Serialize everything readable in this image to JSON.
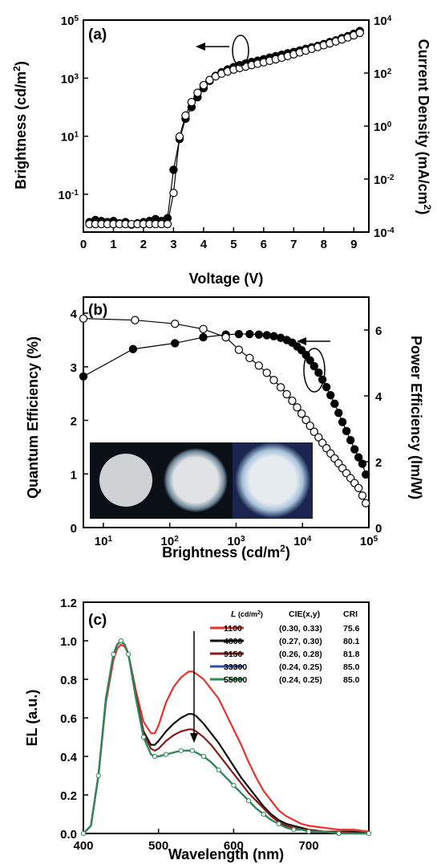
{
  "chart_data": [
    {
      "type": "line",
      "panel_label": "(a)",
      "xlabel": "Voltage (V)",
      "ylabel_left": "Brightness (cd/m2)",
      "ylabel_right": "Current Density (mA/cm2)",
      "xlim": [
        0,
        9.5
      ],
      "ylim_left": [
        0.005,
        100000
      ],
      "ylim_right": [
        0.0001,
        10000
      ],
      "yscale": "log",
      "x_ticks": [
        "0",
        "1",
        "2",
        "3",
        "4",
        "5",
        "6",
        "7",
        "8",
        "9"
      ],
      "y_ticks_left": [
        {
          "base": "10",
          "exp": "5"
        },
        {
          "base": "10",
          "exp": "3"
        },
        {
          "base": "10",
          "exp": "1"
        },
        {
          "base": "10",
          "exp": "-1"
        }
      ],
      "y_ticks_right": [
        {
          "base": "10",
          "exp": "4"
        },
        {
          "base": "10",
          "exp": "2"
        },
        {
          "base": "10",
          "exp": "0"
        },
        {
          "base": "10",
          "exp": "-2"
        },
        {
          "base": "10",
          "exp": "-4"
        }
      ],
      "arrow_direction": "left",
      "series": [
        {
          "marker": "filled-circle",
          "axis": "left",
          "color": "#000000",
          "x": [
            0.2,
            0.4,
            0.6,
            0.8,
            1.0,
            1.2,
            1.4,
            1.6,
            1.8,
            2.0,
            2.2,
            2.4,
            2.6,
            2.8,
            3.0,
            3.2,
            3.4,
            3.6,
            3.8,
            4.0,
            4.2,
            4.4,
            4.6,
            4.8,
            5.0,
            5.2,
            5.4,
            5.6,
            5.8,
            6.0,
            6.2,
            6.4,
            6.6,
            6.8,
            7.0,
            7.2,
            7.4,
            7.6,
            7.8,
            8.0,
            8.2,
            8.4,
            8.6,
            8.8,
            9.0,
            9.2
          ],
          "y": [
            0.011,
            0.013,
            0.012,
            0.011,
            0.012,
            0.01,
            0.011,
            0.009,
            0.01,
            0.011,
            0.012,
            0.014,
            0.012,
            0.015,
            0.7,
            8,
            40,
            100,
            220,
            450,
            800,
            1200,
            1600,
            2000,
            2400,
            2800,
            3200,
            3600,
            4000,
            4500,
            5100,
            5700,
            6400,
            7200,
            8000,
            9000,
            10200,
            11500,
            13000,
            15000,
            17500,
            20000,
            24000,
            28000,
            34000,
            42000
          ]
        },
        {
          "marker": "open-circle",
          "axis": "right",
          "color": "#000000",
          "x": [
            0.2,
            0.4,
            0.6,
            0.8,
            1.0,
            1.2,
            1.4,
            1.6,
            1.8,
            2.0,
            2.2,
            2.4,
            2.6,
            2.8,
            3.0,
            3.2,
            3.4,
            3.6,
            3.8,
            4.0,
            4.2,
            4.4,
            4.6,
            4.8,
            5.0,
            5.2,
            5.4,
            5.6,
            5.8,
            6.0,
            6.2,
            6.4,
            6.6,
            6.8,
            7.0,
            7.2,
            7.4,
            7.6,
            7.8,
            8.0,
            8.2,
            8.4,
            8.6,
            8.8,
            9.0,
            9.2
          ],
          "y": [
            0.0002,
            0.0002,
            0.0002,
            0.0002,
            0.0002,
            0.0002,
            0.0002,
            0.0002,
            0.0002,
            0.0002,
            0.0002,
            0.0002,
            0.0002,
            0.0002,
            0.003,
            0.4,
            2.5,
            8,
            18,
            35,
            55,
            75,
            95,
            115,
            135,
            155,
            175,
            200,
            225,
            255,
            290,
            330,
            380,
            440,
            510,
            600,
            700,
            820,
            960,
            1120,
            1320,
            1560,
            1850,
            2200,
            2650,
            3300
          ]
        }
      ]
    },
    {
      "type": "line",
      "panel_label": "(b)",
      "xlabel": "Brightness (cd/m2)",
      "ylabel_left": "Quantum Efficiency (%)",
      "ylabel_right": "Power Efficiency (lm/W)",
      "xscale": "log",
      "xlim": [
        5,
        100000
      ],
      "ylim_left": [
        0,
        4.3
      ],
      "ylim_right": [
        0,
        7.0
      ],
      "x_ticks": [
        {
          "base": "10",
          "exp": "1"
        },
        {
          "base": "10",
          "exp": "2"
        },
        {
          "base": "10",
          "exp": "3"
        },
        {
          "base": "10",
          "exp": "4"
        },
        {
          "base": "10",
          "exp": "5"
        }
      ],
      "y_ticks_left": [
        "0",
        "1",
        "2",
        "3",
        "4"
      ],
      "y_ticks_right": [
        "0",
        "2",
        "4",
        "6"
      ],
      "arrow_direction": "left",
      "inset": "three photographs of emitting circular device pixels",
      "series": [
        {
          "marker": "filled-circle",
          "axis": "left",
          "color": "#000000",
          "x": [
            5,
            28,
            120,
            320,
            700,
            1100,
            1600,
            2200,
            2900,
            3700,
            4700,
            5800,
            7000,
            8300,
            9700,
            11300,
            13000,
            15000,
            17500,
            20000,
            23000,
            26500,
            30500,
            35000,
            40000,
            46000,
            53000,
            61000,
            70000,
            80000,
            90000
          ],
          "y": [
            2.82,
            3.33,
            3.44,
            3.55,
            3.6,
            3.61,
            3.61,
            3.6,
            3.59,
            3.57,
            3.54,
            3.5,
            3.45,
            3.38,
            3.31,
            3.22,
            3.12,
            3.01,
            2.89,
            2.76,
            2.62,
            2.47,
            2.31,
            2.14,
            1.97,
            1.8,
            1.63,
            1.46,
            1.31,
            1.19,
            0.99
          ]
        },
        {
          "marker": "open-circle",
          "axis": "right",
          "color": "#000000",
          "x": [
            5,
            30,
            120,
            320,
            700,
            1100,
            1600,
            2200,
            2900,
            3700,
            4700,
            5800,
            7000,
            8300,
            9700,
            11300,
            13000,
            15000,
            17500,
            20000,
            23000,
            26500,
            30500,
            35000,
            40000,
            46000,
            53000,
            61000,
            70000,
            80000,
            90000
          ],
          "y": [
            6.35,
            6.3,
            6.19,
            6.03,
            5.78,
            5.4,
            5.15,
            4.92,
            4.7,
            4.48,
            4.26,
            4.05,
            3.85,
            3.65,
            3.46,
            3.27,
            3.09,
            2.91,
            2.74,
            2.57,
            2.41,
            2.25,
            2.1,
            1.95,
            1.8,
            1.65,
            1.5,
            1.35,
            1.2,
            0.97,
            0.74
          ]
        }
      ]
    },
    {
      "type": "line",
      "panel_label": "(c)",
      "xlabel": "Wavelength (nm)",
      "ylabel": "EL (a.u.)",
      "xlim": [
        400,
        780
      ],
      "ylim": [
        0,
        1.2
      ],
      "x_ticks": [
        "400",
        "500",
        "600",
        "700"
      ],
      "y_ticks": [
        "0.0",
        "0.2",
        "0.4",
        "0.6",
        "0.8",
        "1.0",
        "1.2"
      ],
      "legend": {
        "header_L": "L",
        "header_L_unit": "(cd/m",
        "header_L_exp": "2",
        "header_L_close": ")",
        "header_cie": "CIE(x,y)",
        "header_cri": "CRI"
      },
      "x": [
        400,
        410,
        420,
        430,
        440,
        445,
        450,
        455,
        460,
        470,
        480,
        490,
        495,
        500,
        510,
        520,
        530,
        540,
        545,
        550,
        560,
        570,
        580,
        590,
        600,
        610,
        620,
        630,
        640,
        650,
        660,
        670,
        680,
        690,
        700,
        720,
        740,
        760,
        780
      ],
      "series": [
        {
          "name": "1100",
          "cie": "(0.30, 0.33)",
          "cri": "75.6",
          "color": "#e8322c",
          "y": [
            0.0,
            0.04,
            0.3,
            0.68,
            0.9,
            0.96,
            0.98,
            0.97,
            0.93,
            0.74,
            0.58,
            0.52,
            0.52,
            0.56,
            0.68,
            0.76,
            0.81,
            0.84,
            0.84,
            0.83,
            0.8,
            0.75,
            0.7,
            0.62,
            0.54,
            0.46,
            0.37,
            0.29,
            0.22,
            0.17,
            0.12,
            0.09,
            0.07,
            0.05,
            0.04,
            0.03,
            0.02,
            0.02,
            0.01
          ]
        },
        {
          "name": "4800",
          "cie": "(0.27, 0.30)",
          "cri": "80.1",
          "color": "#111111",
          "y": [
            0.0,
            0.04,
            0.3,
            0.7,
            0.93,
            0.98,
            1.0,
            0.98,
            0.93,
            0.71,
            0.53,
            0.46,
            0.46,
            0.48,
            0.53,
            0.57,
            0.6,
            0.62,
            0.62,
            0.61,
            0.57,
            0.52,
            0.47,
            0.41,
            0.35,
            0.29,
            0.24,
            0.19,
            0.14,
            0.1,
            0.07,
            0.05,
            0.04,
            0.03,
            0.02,
            0.01,
            0.01,
            0.01,
            0.0
          ]
        },
        {
          "name": "9150",
          "cie": "(0.26, 0.28)",
          "cri": "81.8",
          "color": "#8b1a1a",
          "y": [
            0.0,
            0.04,
            0.3,
            0.7,
            0.93,
            0.98,
            1.0,
            0.98,
            0.93,
            0.7,
            0.52,
            0.44,
            0.43,
            0.44,
            0.48,
            0.51,
            0.53,
            0.54,
            0.54,
            0.53,
            0.5,
            0.46,
            0.41,
            0.36,
            0.31,
            0.26,
            0.21,
            0.17,
            0.13,
            0.09,
            0.06,
            0.04,
            0.03,
            0.02,
            0.02,
            0.01,
            0.01,
            0.0,
            0.0
          ]
        },
        {
          "name": "33300",
          "cie": "(0.24, 0.25)",
          "cri": "85.0",
          "color": "#2f4fa0",
          "y": [
            0.0,
            0.04,
            0.3,
            0.7,
            0.93,
            0.98,
            1.0,
            0.98,
            0.93,
            0.7,
            0.5,
            0.41,
            0.4,
            0.4,
            0.41,
            0.42,
            0.43,
            0.43,
            0.43,
            0.42,
            0.4,
            0.37,
            0.33,
            0.29,
            0.25,
            0.21,
            0.17,
            0.13,
            0.1,
            0.07,
            0.05,
            0.03,
            0.02,
            0.02,
            0.01,
            0.01,
            0.0,
            0.0,
            0.0
          ]
        },
        {
          "name": "55000",
          "cie": "(0.24, 0.25)",
          "cri": "85.0",
          "color": "#2e8b57",
          "y": [
            0.0,
            0.04,
            0.3,
            0.7,
            0.93,
            0.98,
            1.0,
            0.98,
            0.93,
            0.7,
            0.5,
            0.41,
            0.4,
            0.4,
            0.41,
            0.42,
            0.43,
            0.43,
            0.43,
            0.42,
            0.4,
            0.37,
            0.33,
            0.29,
            0.25,
            0.21,
            0.17,
            0.13,
            0.1,
            0.07,
            0.05,
            0.03,
            0.02,
            0.02,
            0.01,
            0.01,
            0.0,
            0.0,
            0.0
          ]
        }
      ],
      "arrow_direction": "down",
      "arrow_at_x": 545
    }
  ]
}
